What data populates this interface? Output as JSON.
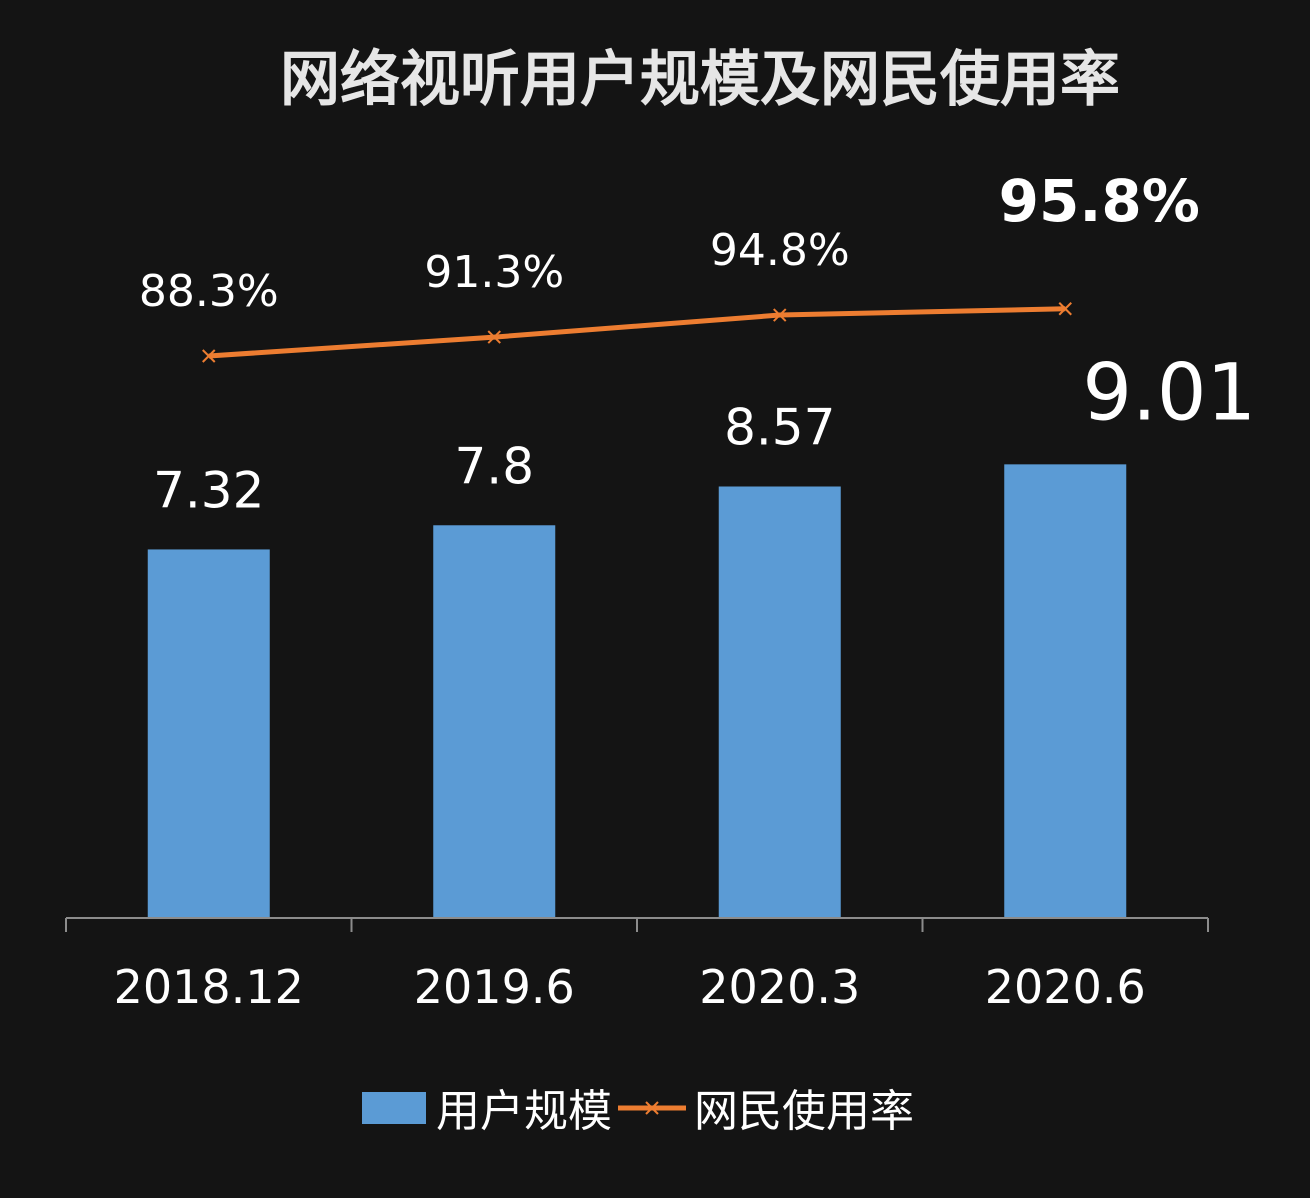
{
  "chart_data": {
    "type": "bar",
    "title": "网络视听用户规模及网民使用率",
    "categories": [
      "2018.12",
      "2019.6",
      "2020.3",
      "2020.6"
    ],
    "series": [
      {
        "name": "用户规模",
        "type": "bar",
        "values": [
          7.32,
          7.8,
          8.57,
          9.01
        ],
        "value_labels": [
          "7.32",
          "7.8",
          "8.57",
          "9.01"
        ]
      },
      {
        "name": "网民使用率",
        "type": "line",
        "values": [
          88.3,
          91.3,
          94.8,
          95.8
        ],
        "value_labels": [
          "88.3%",
          "91.3%",
          "94.8%",
          "95.8%"
        ]
      }
    ],
    "grid": false,
    "legend_position": "bottom",
    "colors": {
      "bar": "#5b9bd5",
      "line": "#ed7d31"
    }
  }
}
